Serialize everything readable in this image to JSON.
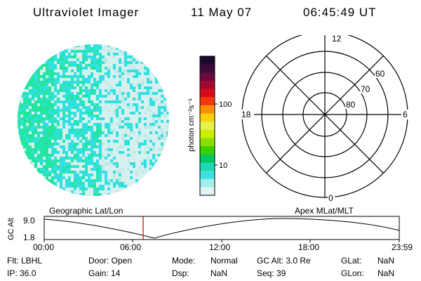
{
  "header": {
    "instrument": "Ultraviolet Imager",
    "date": "11 May 07",
    "time": "06:45:49 UT"
  },
  "colorbar": {
    "unit_label": "photon cm⁻²s⁻¹",
    "ticks": [
      "100",
      "10"
    ]
  },
  "polar": {
    "mlt_labels": {
      "top": "12",
      "left": "18",
      "right": "6",
      "bottom": "0"
    },
    "lat_labels": [
      "60",
      "70",
      "80"
    ]
  },
  "timeline": {
    "label_left": "Geographic Lat/Lon",
    "label_right": "Apex MLat/MLT",
    "axis_label": "GC Alt",
    "y_ticks": [
      "9.0",
      "1.8"
    ],
    "x_ticks": [
      "00:00",
      "06:00",
      "12:00",
      "18:00",
      "23:59"
    ]
  },
  "info": {
    "row1": {
      "flt": "Flt: LBHL",
      "door": "Door: Open",
      "mode_label": "Mode:",
      "mode_value": "Normal",
      "gcalt": "GC Alt: 3.0 Re",
      "glat_label": "GLat:",
      "glat_value": "NaN"
    },
    "row2": {
      "ip": "IP: 36.0",
      "gain": "Gain: 14",
      "dsp_label": "Dsp:",
      "dsp_value": "NaN",
      "seq": "Seq: 39",
      "glon_label": "GLon:",
      "glon_value": "NaN"
    }
  },
  "colors": {
    "cyan": "#33e0e0",
    "green": "#22e6a0",
    "pale": "#d6f0ef",
    "marker_red": "#cc0000"
  }
}
